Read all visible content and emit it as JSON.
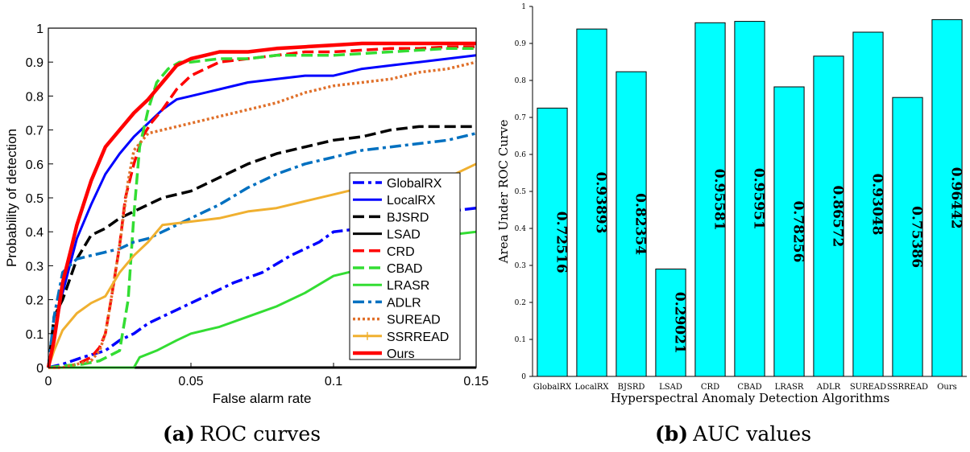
{
  "captions": {
    "a": {
      "letter": "(a)",
      "text": "ROC curves"
    },
    "b": {
      "letter": "(b)",
      "text": "AUC values"
    }
  },
  "chart_data": [
    {
      "type": "line",
      "panel": "a",
      "title": "",
      "xlabel": "False alarm rate",
      "ylabel": "Probability of detection",
      "xlim": [
        0,
        0.15
      ],
      "ylim": [
        0,
        1
      ],
      "xticks": [
        "0",
        "0.05",
        "0.1",
        "0.15"
      ],
      "xtick_values": [
        0,
        0.05,
        0.1,
        0.15
      ],
      "yticks": [
        "0",
        "0.1",
        "0.2",
        "0.3",
        "0.4",
        "0.5",
        "0.6",
        "0.7",
        "0.8",
        "0.9",
        "1"
      ],
      "ytick_values": [
        0,
        0.1,
        0.2,
        0.3,
        0.4,
        0.5,
        0.6,
        0.7,
        0.8,
        0.9,
        1
      ],
      "legend_position": "right",
      "series": [
        {
          "name": "GlobalRX",
          "color": "#0000ff",
          "style": "dashdot",
          "x": [
            0,
            0.005,
            0.012,
            0.02,
            0.025,
            0.03,
            0.035,
            0.045,
            0.055,
            0.065,
            0.075,
            0.085,
            0.095,
            0.1,
            0.11,
            0.125,
            0.14,
            0.15
          ],
          "y": [
            0,
            0.01,
            0.03,
            0.05,
            0.08,
            0.1,
            0.13,
            0.17,
            0.21,
            0.25,
            0.28,
            0.33,
            0.37,
            0.4,
            0.41,
            0.43,
            0.46,
            0.47
          ]
        },
        {
          "name": "LocalRX",
          "color": "#0000ff",
          "style": "solid",
          "x": [
            0,
            0.002,
            0.005,
            0.01,
            0.015,
            0.02,
            0.025,
            0.03,
            0.035,
            0.04,
            0.045,
            0.05,
            0.06,
            0.07,
            0.08,
            0.09,
            0.1,
            0.11,
            0.12,
            0.13,
            0.14,
            0.15
          ],
          "y": [
            0,
            0.1,
            0.22,
            0.38,
            0.48,
            0.57,
            0.63,
            0.68,
            0.72,
            0.76,
            0.79,
            0.8,
            0.82,
            0.84,
            0.85,
            0.86,
            0.86,
            0.88,
            0.89,
            0.9,
            0.91,
            0.92
          ]
        },
        {
          "name": "BJSRD",
          "color": "#000000",
          "style": "dashed",
          "x": [
            0,
            0.002,
            0.005,
            0.01,
            0.015,
            0.02,
            0.025,
            0.03,
            0.035,
            0.04,
            0.05,
            0.06,
            0.07,
            0.08,
            0.09,
            0.1,
            0.11,
            0.12,
            0.13,
            0.15
          ],
          "y": [
            0,
            0.15,
            0.2,
            0.32,
            0.39,
            0.41,
            0.44,
            0.46,
            0.48,
            0.5,
            0.52,
            0.56,
            0.6,
            0.63,
            0.65,
            0.67,
            0.68,
            0.7,
            0.71,
            0.71
          ]
        },
        {
          "name": "LSAD",
          "color": "#000000",
          "style": "solid",
          "x": [
            0,
            0.15
          ],
          "y": [
            0,
            0
          ]
        },
        {
          "name": "CRD",
          "color": "#ff0000",
          "style": "dashed",
          "x": [
            0,
            0.005,
            0.01,
            0.015,
            0.018,
            0.02,
            0.022,
            0.025,
            0.027,
            0.03,
            0.033,
            0.036,
            0.04,
            0.045,
            0.05,
            0.055,
            0.06,
            0.07,
            0.08,
            0.09,
            0.1,
            0.11,
            0.12,
            0.13,
            0.14,
            0.15
          ],
          "y": [
            0,
            0,
            0.01,
            0.03,
            0.06,
            0.1,
            0.2,
            0.36,
            0.5,
            0.6,
            0.68,
            0.72,
            0.76,
            0.82,
            0.86,
            0.88,
            0.9,
            0.91,
            0.92,
            0.93,
            0.93,
            0.935,
            0.94,
            0.94,
            0.945,
            0.945
          ]
        },
        {
          "name": "CBAD",
          "color": "#33dd33",
          "style": "dashed",
          "x": [
            0,
            0.005,
            0.012,
            0.018,
            0.025,
            0.028,
            0.03,
            0.032,
            0.035,
            0.038,
            0.042,
            0.046,
            0.05,
            0.06,
            0.07,
            0.08,
            0.09,
            0.1,
            0.11,
            0.12,
            0.13,
            0.14,
            0.15
          ],
          "y": [
            0,
            0.005,
            0.01,
            0.02,
            0.05,
            0.2,
            0.45,
            0.65,
            0.76,
            0.84,
            0.88,
            0.9,
            0.9,
            0.91,
            0.91,
            0.92,
            0.92,
            0.92,
            0.925,
            0.93,
            0.935,
            0.94,
            0.94
          ]
        },
        {
          "name": "LRASR",
          "color": "#33dd33",
          "style": "solid",
          "x": [
            0,
            0.03,
            0.032,
            0.038,
            0.045,
            0.05,
            0.055,
            0.06,
            0.07,
            0.08,
            0.09,
            0.1,
            0.11,
            0.12,
            0.13,
            0.14,
            0.15
          ],
          "y": [
            0,
            0,
            0.03,
            0.05,
            0.08,
            0.1,
            0.11,
            0.12,
            0.15,
            0.18,
            0.22,
            0.27,
            0.29,
            0.32,
            0.36,
            0.39,
            0.4
          ]
        },
        {
          "name": "ADLR",
          "color": "#0070c0",
          "style": "dashdot",
          "x": [
            0,
            0.002,
            0.005,
            0.01,
            0.015,
            0.02,
            0.025,
            0.03,
            0.035,
            0.04,
            0.05,
            0.06,
            0.07,
            0.08,
            0.09,
            0.1,
            0.11,
            0.12,
            0.13,
            0.14,
            0.15
          ],
          "y": [
            0,
            0.15,
            0.28,
            0.32,
            0.33,
            0.34,
            0.35,
            0.37,
            0.38,
            0.4,
            0.44,
            0.48,
            0.53,
            0.57,
            0.6,
            0.62,
            0.64,
            0.65,
            0.66,
            0.67,
            0.69
          ]
        },
        {
          "name": "SUREAD",
          "color": "#e0702a",
          "style": "dotted",
          "x": [
            0,
            0.005,
            0.01,
            0.015,
            0.018,
            0.02,
            0.022,
            0.025,
            0.028,
            0.03,
            0.035,
            0.04,
            0.05,
            0.06,
            0.07,
            0.08,
            0.09,
            0.1,
            0.11,
            0.12,
            0.13,
            0.14,
            0.15
          ],
          "y": [
            0,
            0,
            0.01,
            0.02,
            0.05,
            0.1,
            0.2,
            0.36,
            0.55,
            0.64,
            0.69,
            0.7,
            0.72,
            0.74,
            0.76,
            0.78,
            0.81,
            0.83,
            0.84,
            0.85,
            0.87,
            0.88,
            0.9
          ]
        },
        {
          "name": "SSRREAD",
          "color": "#f0b030",
          "style": "solid-marker",
          "x": [
            0,
            0.002,
            0.005,
            0.01,
            0.015,
            0.02,
            0.025,
            0.03,
            0.035,
            0.04,
            0.05,
            0.06,
            0.07,
            0.08,
            0.09,
            0.1,
            0.11,
            0.12,
            0.13,
            0.14,
            0.15
          ],
          "y": [
            0,
            0.05,
            0.11,
            0.16,
            0.19,
            0.21,
            0.28,
            0.33,
            0.37,
            0.42,
            0.43,
            0.44,
            0.46,
            0.47,
            0.49,
            0.51,
            0.53,
            0.54,
            0.55,
            0.56,
            0.6
          ]
        },
        {
          "name": "Ours",
          "color": "#ff0000",
          "style": "solid",
          "x": [
            0,
            0.002,
            0.005,
            0.008,
            0.01,
            0.015,
            0.02,
            0.025,
            0.03,
            0.035,
            0.04,
            0.045,
            0.05,
            0.055,
            0.06,
            0.07,
            0.08,
            0.09,
            0.1,
            0.11,
            0.12,
            0.13,
            0.14,
            0.15
          ],
          "y": [
            0,
            0.08,
            0.25,
            0.35,
            0.42,
            0.55,
            0.65,
            0.7,
            0.75,
            0.79,
            0.84,
            0.89,
            0.91,
            0.92,
            0.93,
            0.93,
            0.94,
            0.945,
            0.95,
            0.955,
            0.955,
            0.955,
            0.955,
            0.955
          ]
        }
      ]
    },
    {
      "type": "bar",
      "panel": "b",
      "title": "",
      "xlabel": "Hyperspectral Anomaly Detection Algorithms",
      "ylabel": "Area Under ROC Curve",
      "ylim": [
        0,
        1
      ],
      "yticks": [
        "0",
        "0.1",
        "0.2",
        "0.3",
        "0.4",
        "0.5",
        "0.6",
        "0.7",
        "0.8",
        "0.9",
        "1"
      ],
      "ytick_values": [
        0,
        0.1,
        0.2,
        0.3,
        0.4,
        0.5,
        0.6,
        0.7,
        0.8,
        0.9,
        1
      ],
      "bar_color": "#00ffff",
      "categories": [
        "GlobalRX",
        "LocalRX",
        "BJSRD",
        "LSAD",
        "CRD",
        "CBAD",
        "LRASR",
        "ADLR",
        "SUREAD",
        "SSRREAD",
        "Ours"
      ],
      "values": [
        0.72516,
        0.93893,
        0.82354,
        0.29021,
        0.95581,
        0.95951,
        0.78256,
        0.86572,
        0.93048,
        0.75386,
        0.96442
      ],
      "value_labels": [
        "0.72516",
        "0.93893",
        "0.82354",
        "0.29021",
        "0.95581",
        "0.95951",
        "0.78256",
        "0.86572",
        "0.93048",
        "0.75386",
        "0.96442"
      ]
    }
  ]
}
